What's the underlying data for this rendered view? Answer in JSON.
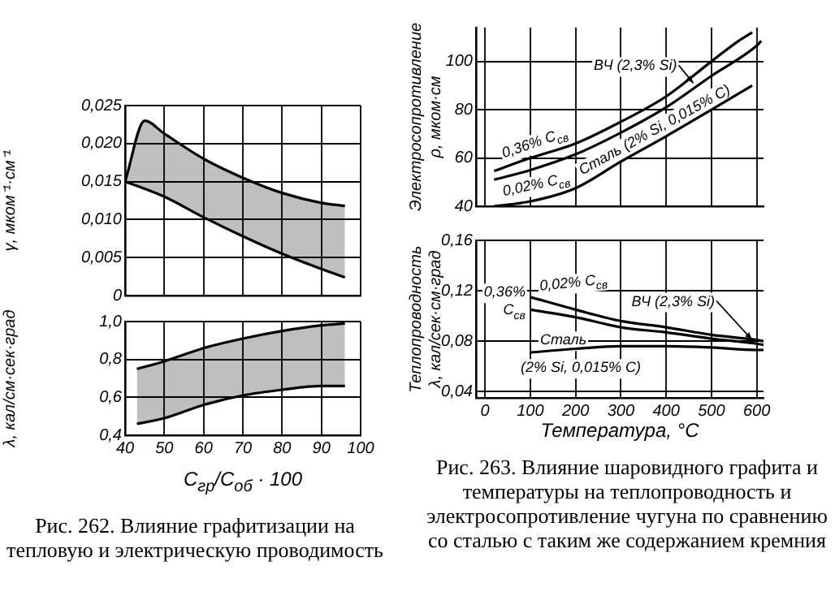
{
  "chart_data": [
    {
      "type": "area",
      "ylabel": "γ, мком⁻¹·см⁻¹",
      "grid": true,
      "tick_labels": "y",
      "xlim": [
        40,
        100
      ],
      "xticks": [
        40,
        50,
        60,
        70,
        80,
        90,
        100
      ],
      "ylim": [
        0,
        0.025
      ],
      "yticks": [
        0,
        {
          "value": 0.005,
          "label": "0,005"
        },
        {
          "value": 0.01,
          "label": "0,010"
        },
        {
          "value": 0.015,
          "label": "0,015"
        },
        {
          "value": 0.02,
          "label": "0,020"
        },
        {
          "value": 0.025,
          "label": "0,025"
        }
      ],
      "series": [
        {
          "type": "line",
          "color": "#000000",
          "x": [
            40,
            50,
            60,
            70,
            80,
            90,
            96
          ],
          "values": [
            0.015,
            0.013,
            0.0103,
            0.0078,
            0.0055,
            0.0035,
            0.0024
          ]
        },
        {
          "color": "#000000",
          "x": [
            40,
            45,
            50,
            60,
            70,
            80,
            90,
            96
          ],
          "values": [
            0.015,
            0.023,
            0.0213,
            0.018,
            0.0155,
            0.0135,
            0.0122,
            0.0118
          ]
        }
      ]
    },
    {
      "type": "area",
      "xlabel": "C$_{гр}$/C$_{об}$ · 100",
      "ylabel": "λ, кал/см·сек·град",
      "grid": true,
      "xlim": [
        40,
        100
      ],
      "xticks": [
        40,
        50,
        60,
        70,
        80,
        90,
        100
      ],
      "ylim": [
        0.4,
        1.0
      ],
      "yticks": [
        {
          "value": 0.4,
          "label": "0,4"
        },
        {
          "value": 0.6,
          "label": "0,6"
        },
        {
          "value": 0.8,
          "label": "0,8"
        },
        {
          "value": 1.0,
          "label": "1,0"
        }
      ],
      "series": [
        {
          "type": "line",
          "color": "#000000",
          "x": [
            43,
            50,
            60,
            70,
            80,
            90,
            96
          ],
          "values": [
            0.46,
            0.49,
            0.56,
            0.61,
            0.64,
            0.66,
            0.66
          ]
        },
        {
          "color": "#000000",
          "x": [
            43,
            50,
            60,
            70,
            80,
            90,
            96
          ],
          "values": [
            0.75,
            0.79,
            0.86,
            0.91,
            0.95,
            0.98,
            0.99
          ]
        }
      ],
      "annotations": [
        "Рис. 262. Влияние графитизации на тепловую и электрическую проводимость"
      ]
    },
    {
      "type": "line",
      "ylabel": "Электросопротивление\nρ, мком·см",
      "grid": true,
      "tick_labels": "y",
      "xlim": [
        -20,
        615
      ],
      "xticks": [
        0,
        100,
        200,
        300,
        400,
        500,
        600
      ],
      "ylim": [
        40,
        114
      ],
      "yticks": [
        40,
        60,
        80,
        100
      ],
      "series": [
        {
          "name": "0,36% C$_{св}$",
          "color": "#000000",
          "x": [
            20,
            100,
            200,
            300,
            400,
            500,
            560,
            590
          ],
          "values": [
            54.6,
            60,
            66,
            75,
            85.5,
            100,
            108.5,
            112
          ]
        },
        {
          "name": "0,02% C$_{св}$",
          "color": "#000000",
          "x": [
            20,
            100,
            200,
            300,
            400,
            500,
            600,
            610
          ],
          "values": [
            51,
            55,
            61.5,
            70.5,
            81,
            94,
            106.5,
            108.5
          ]
        },
        {
          "name": "Сталь (2% Si, 0,015% C)",
          "color": "#000000",
          "x": [
            20,
            100,
            200,
            300,
            400,
            500,
            590
          ],
          "values": [
            40,
            42,
            47.5,
            58.5,
            69,
            80,
            90
          ]
        }
      ],
      "annotations": [
        {
          "text": "ВЧ (2,3% Si)",
          "x": 460,
          "y": 91
        }
      ]
    },
    {
      "type": "line",
      "xlabel": "Температура, °С",
      "ylabel": "Теплопроводность\nλ, кал/сек·см·град",
      "grid": true,
      "xlim": [
        -20,
        615
      ],
      "xticks": [
        0,
        100,
        200,
        300,
        400,
        500,
        600
      ],
      "ylim": [
        0.035,
        0.16
      ],
      "yticks": [
        {
          "value": 0.04,
          "label": "0,04"
        },
        {
          "value": 0.08,
          "label": "0,08"
        },
        {
          "value": 0.12,
          "label": "0,12"
        },
        {
          "value": 0.16,
          "label": "0,16"
        }
      ],
      "series": [
        {
          "name": "0,02% C$_{св}$",
          "color": "#000000",
          "x": [
            100,
            200,
            300,
            400,
            500,
            600,
            615
          ],
          "values": [
            0.115,
            0.105,
            0.096,
            0.091,
            0.085,
            0.081,
            0.08
          ]
        },
        {
          "name": "0,36% C$_{св}$",
          "color": "#000000",
          "x": [
            100,
            200,
            300,
            400,
            500,
            600,
            615
          ],
          "values": [
            0.105,
            0.099,
            0.091,
            0.087,
            0.082,
            0.078,
            0.077
          ]
        },
        {
          "name": "Сталь (2% Si, 0,015% C)",
          "color": "#000000",
          "x": [
            100,
            200,
            300,
            400,
            500,
            600,
            615
          ],
          "values": [
            0.071,
            0.074,
            0.076,
            0.076,
            0.075,
            0.073,
            0.073
          ]
        }
      ],
      "annotations": [
        {
          "text": "ВЧ (2,3% Si)",
          "x": 590,
          "y": 0.081
        },
        "Рис. 263. Влияние шаровидного графита и температуры на теплопроводность и электросопротивление чугуна по сравнению со сталью с таким же содержанием кремния"
      ]
    }
  ]
}
